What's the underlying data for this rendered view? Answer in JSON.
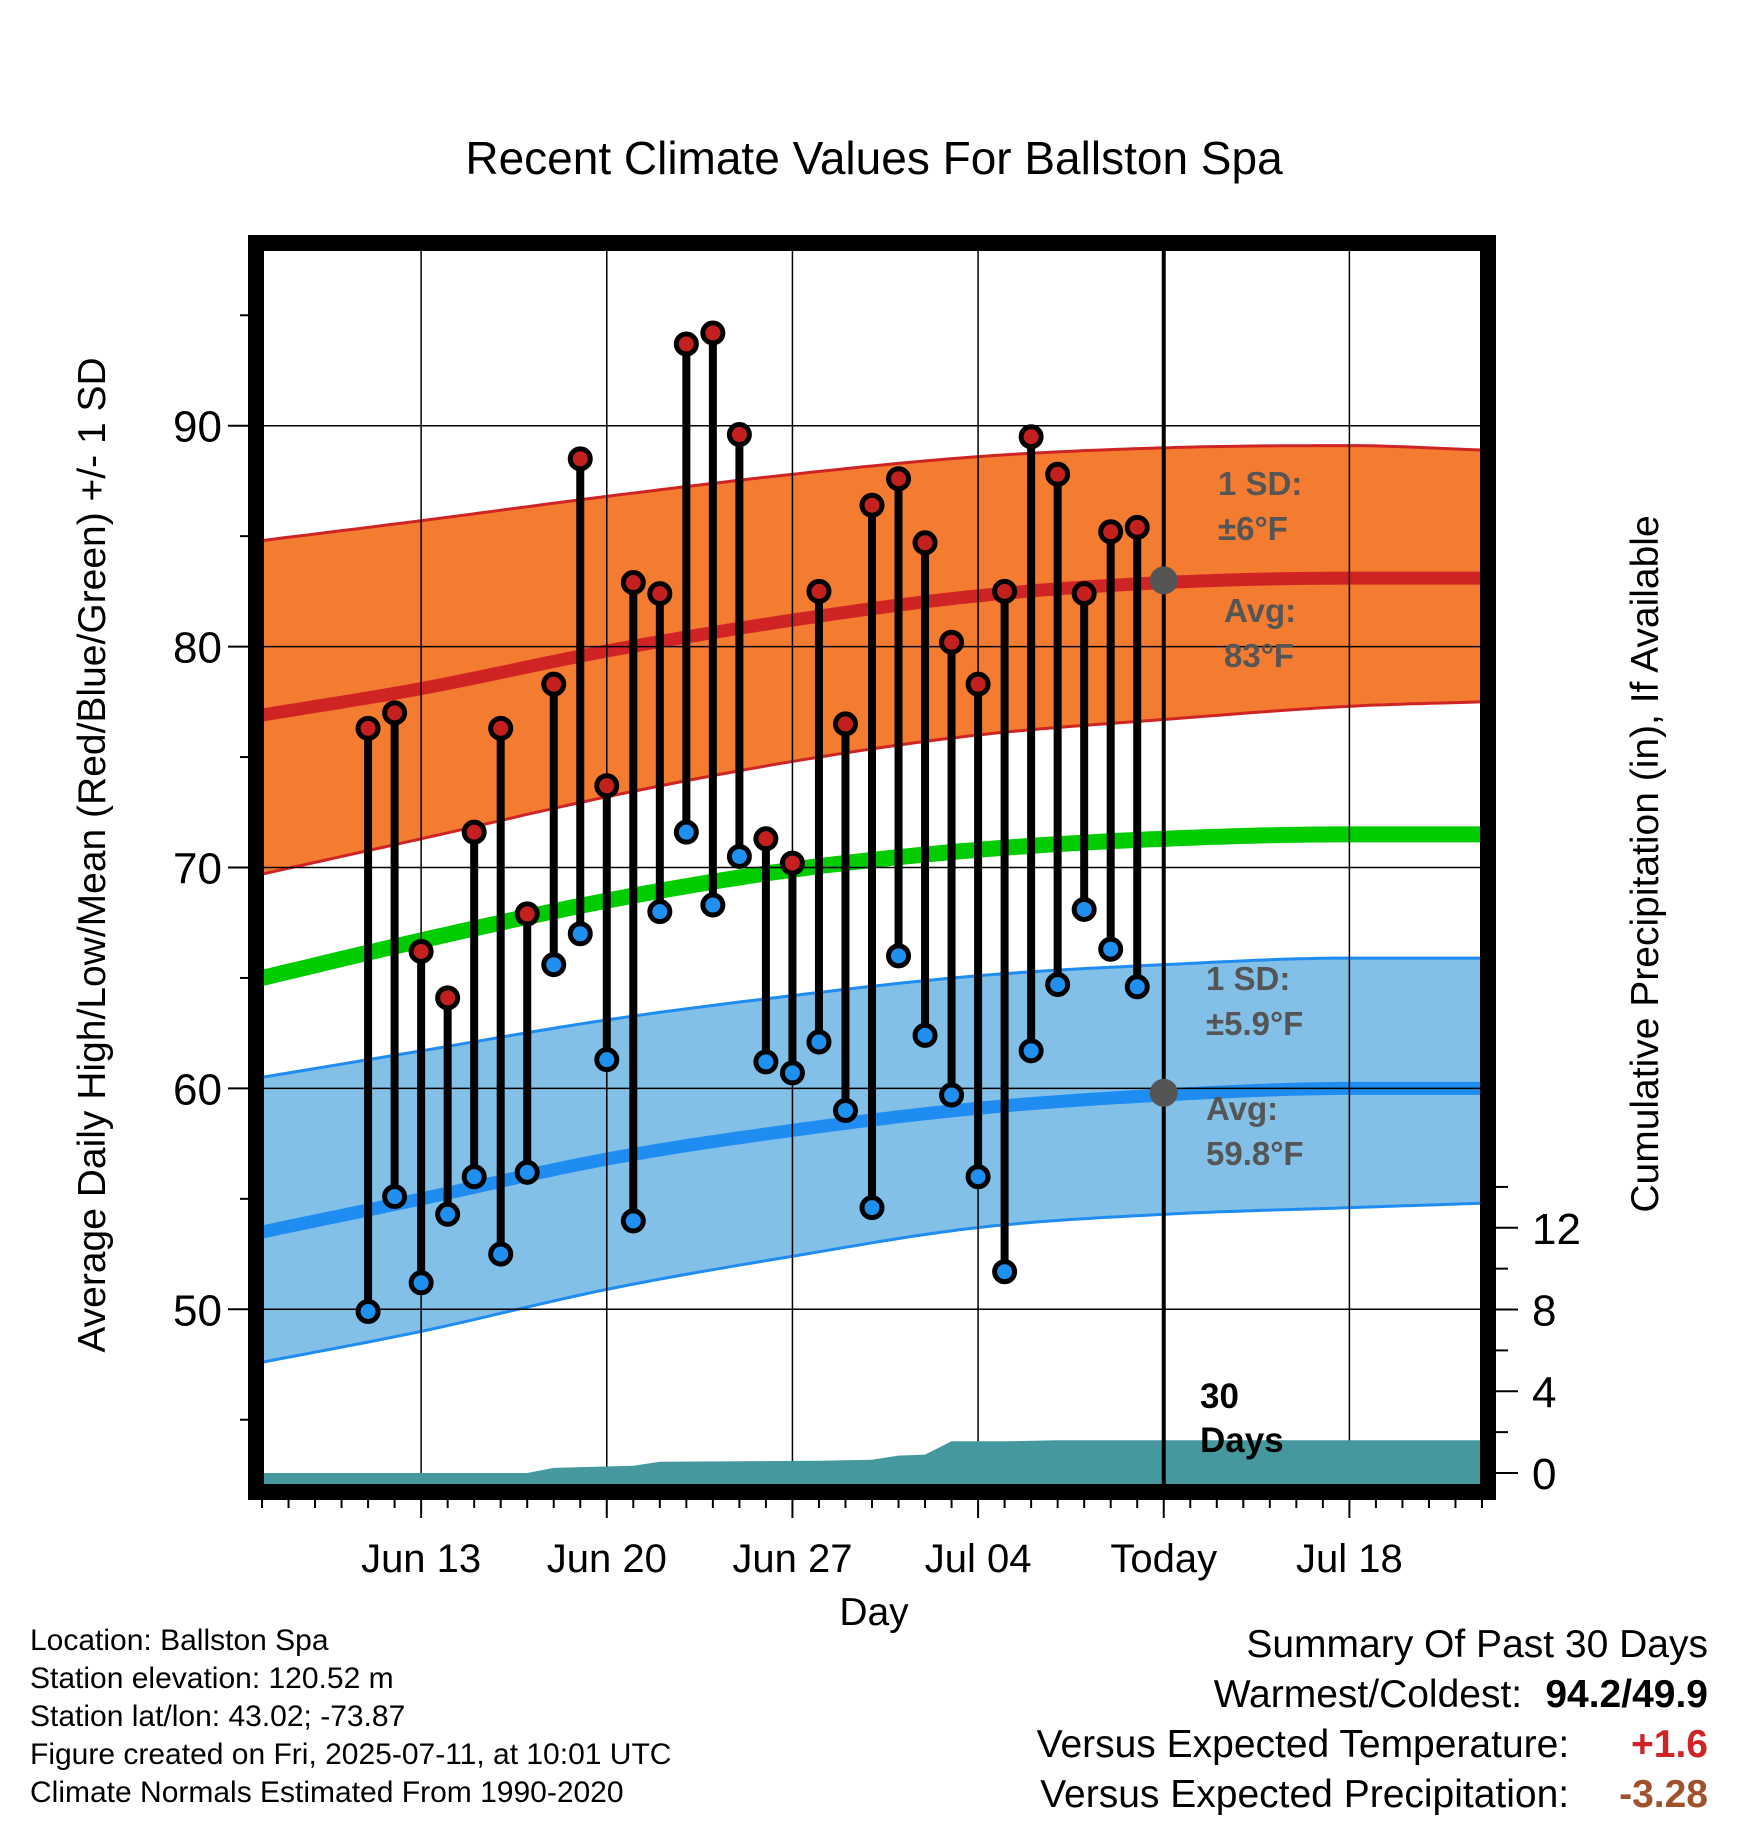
{
  "chart_data": {
    "type": "line",
    "title": "Recent Climate Values For Ballston Spa",
    "xlabel": "Day",
    "ylabel": "Average Daily High/Low/Mean (Red/Blue/Green) +/- 1 SD",
    "y2label": "Cumulative Precipitation (in), If Available",
    "ylim": [
      42,
      98
    ],
    "y2lim": [
      0,
      30
    ],
    "x_range_days": [
      -34,
      12
    ],
    "x_ticks": [
      {
        "day": -28,
        "label": "Jun 13"
      },
      {
        "day": -21,
        "label": "Jun 20"
      },
      {
        "day": -14,
        "label": "Jun 27"
      },
      {
        "day": -7,
        "label": "Jul 04"
      },
      {
        "day": 0,
        "label": "Today"
      },
      {
        "day": 7,
        "label": "Jul 18"
      }
    ],
    "y_ticks": [
      50,
      60,
      70,
      80,
      90
    ],
    "y2_ticks": [
      0,
      4,
      8,
      12
    ],
    "grid": true,
    "today_label": [
      "30",
      "Days"
    ],
    "observed": {
      "days": [
        -30,
        -29,
        -28,
        -27,
        -26,
        -25,
        -24,
        -23,
        -22,
        -21,
        -20,
        -19,
        -18,
        -17,
        -16,
        -15,
        -14,
        -13,
        -12,
        -11,
        -10,
        -9,
        -8,
        -7,
        -6,
        -5,
        -4,
        -3,
        -2,
        -1
      ],
      "highs": [
        76.3,
        77.0,
        66.2,
        64.1,
        71.6,
        76.3,
        67.9,
        78.3,
        88.5,
        73.7,
        82.9,
        82.4,
        93.7,
        94.2,
        89.6,
        71.3,
        70.2,
        82.5,
        76.5,
        86.4,
        87.6,
        84.7,
        80.2,
        78.3,
        82.5,
        89.5,
        87.8,
        82.4,
        85.2,
        85.4
      ],
      "lows": [
        49.9,
        55.1,
        51.2,
        54.3,
        56.0,
        52.5,
        56.2,
        65.6,
        67.0,
        61.3,
        54.0,
        68.0,
        71.6,
        68.3,
        70.5,
        61.2,
        60.7,
        62.1,
        59.0,
        54.6,
        66.0,
        62.4,
        59.7,
        56.0,
        51.7,
        61.7,
        64.7,
        68.1,
        66.3,
        64.6
      ]
    },
    "normals": {
      "days": [
        -34,
        -28,
        -21,
        -14,
        -7,
        0,
        7,
        12
      ],
      "avg_high": [
        76.9,
        78.1,
        79.8,
        81.2,
        82.3,
        82.9,
        83.1,
        83.1
      ],
      "avg_low": [
        53.5,
        55.0,
        56.8,
        58.1,
        59.1,
        59.7,
        60.0,
        60.0
      ],
      "avg_mean": [
        65.0,
        66.7,
        68.5,
        69.9,
        70.8,
        71.3,
        71.5,
        71.5
      ],
      "high_upper": [
        84.8,
        85.7,
        86.8,
        87.8,
        88.6,
        89.0,
        89.1,
        88.9
      ],
      "high_lower": [
        69.7,
        71.3,
        73.2,
        74.8,
        76.0,
        76.7,
        77.3,
        77.5
      ],
      "low_upper": [
        60.5,
        61.7,
        63.1,
        64.2,
        65.1,
        65.6,
        65.9,
        65.9
      ],
      "low_lower": [
        47.6,
        49.0,
        50.9,
        52.4,
        53.7,
        54.3,
        54.6,
        54.8
      ]
    },
    "precipitation": {
      "days": [
        -34,
        -24,
        -23,
        -20,
        -19,
        -13,
        -11,
        -10,
        -9,
        -8,
        -6,
        -4,
        0,
        12
      ],
      "cumulative": [
        0,
        0,
        0.25,
        0.35,
        0.55,
        0.6,
        0.65,
        0.85,
        0.9,
        1.55,
        1.55,
        1.6,
        1.6,
        1.6
      ]
    },
    "annotations": {
      "high_sd_label": [
        "1 SD:",
        "±6°F"
      ],
      "high_avg_label": [
        "Avg:",
        "83°F"
      ],
      "low_sd_label": [
        "1 SD:",
        "±5.9°F"
      ],
      "low_avg_label": [
        "Avg:",
        "59.8°F"
      ],
      "today_avg_high": 83.0,
      "today_avg_low": 59.8
    },
    "colors": {
      "high_band": "#f47c30",
      "high_line": "#d02424",
      "low_band": "#82c0e8",
      "low_line": "#1e8cf0",
      "mean_line": "#00cc00",
      "precip_fill": "#45999e",
      "high_dot": "#c42020",
      "low_dot": "#2090f0",
      "annotation_text": "#555555"
    }
  },
  "footer": {
    "location": "Location: Ballston Spa",
    "elevation": "Station elevation: 120.52 m",
    "latlon": "Station lat/lon: 43.02; -73.87",
    "created": "Figure created on Fri, 2025-07-11, at 10:01 UTC",
    "normals": "Climate Normals Estimated From 1990-2020"
  },
  "summary": {
    "title": "Summary Of Past 30 Days",
    "warm_cold_label": "Warmest/Coldest:",
    "warm_cold_value": "94.2/49.9",
    "temp_label": "Versus Expected Temperature:",
    "temp_value": "+1.6",
    "temp_color": "#d02424",
    "precip_label": "Versus Expected Precipitation:",
    "precip_value": "-3.28",
    "precip_color": "#a0522d"
  }
}
